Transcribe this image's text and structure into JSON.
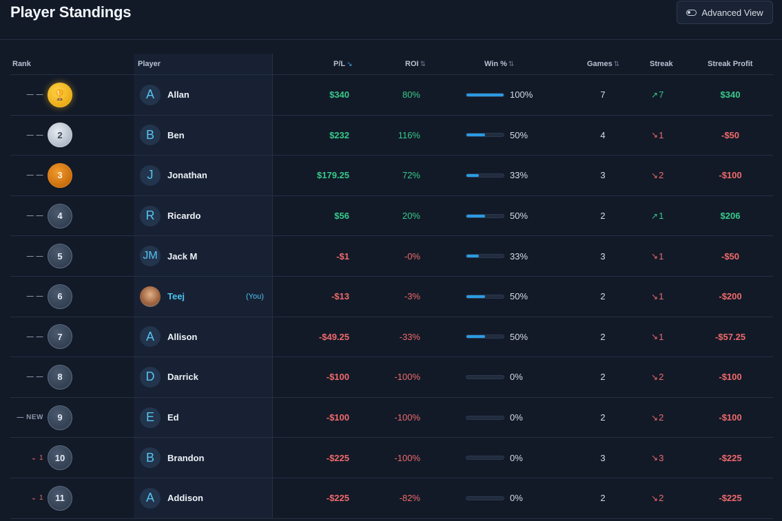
{
  "page": {
    "title": "Player Standings",
    "advanced_view_label": "Advanced View"
  },
  "columns": {
    "rank": "Rank",
    "player": "Player",
    "pl": "P/L",
    "roi": "ROI",
    "win": "Win %",
    "games": "Games",
    "streak": "Streak",
    "streak_profit": "Streak Profit"
  },
  "rows": [
    {
      "move": "— —",
      "rank": "",
      "badge": "gold",
      "initial": "A",
      "name": "Allan",
      "you": "",
      "pl": "$340",
      "pl_dir": "pos",
      "roi": "80%",
      "roi_dir": "pos",
      "win_pct": "100%",
      "win_fraction": 1.0,
      "games": "7",
      "streak_arrow": "↗",
      "streak": "7",
      "streak_dir": "pos",
      "streak_profit": "$340",
      "sp_dir": "pos"
    },
    {
      "move": "— —",
      "rank": "2",
      "badge": "silver",
      "initial": "B",
      "name": "Ben",
      "you": "",
      "pl": "$232",
      "pl_dir": "pos",
      "roi": "116%",
      "roi_dir": "pos",
      "win_pct": "50%",
      "win_fraction": 0.5,
      "games": "4",
      "streak_arrow": "↘",
      "streak": "1",
      "streak_dir": "neg",
      "streak_profit": "-$50",
      "sp_dir": "neg"
    },
    {
      "move": "— —",
      "rank": "3",
      "badge": "bronze",
      "initial": "J",
      "name": "Jonathan",
      "you": "",
      "pl": "$179.25",
      "pl_dir": "pos",
      "roi": "72%",
      "roi_dir": "pos",
      "win_pct": "33%",
      "win_fraction": 0.33,
      "games": "3",
      "streak_arrow": "↘",
      "streak": "2",
      "streak_dir": "neg",
      "streak_profit": "-$100",
      "sp_dir": "neg"
    },
    {
      "move": "— —",
      "rank": "4",
      "badge": "plain",
      "initial": "R",
      "name": "Ricardo",
      "you": "",
      "pl": "$56",
      "pl_dir": "pos",
      "roi": "20%",
      "roi_dir": "pos",
      "win_pct": "50%",
      "win_fraction": 0.5,
      "games": "2",
      "streak_arrow": "↗",
      "streak": "1",
      "streak_dir": "pos",
      "streak_profit": "$206",
      "sp_dir": "pos"
    },
    {
      "move": "— —",
      "rank": "5",
      "badge": "plain",
      "initial": "JM",
      "name": "Jack M",
      "you": "",
      "pl": "-$1",
      "pl_dir": "neg",
      "roi": "-0%",
      "roi_dir": "neg",
      "win_pct": "33%",
      "win_fraction": 0.33,
      "games": "3",
      "streak_arrow": "↘",
      "streak": "1",
      "streak_dir": "neg",
      "streak_profit": "-$50",
      "sp_dir": "neg"
    },
    {
      "move": "— —",
      "rank": "6",
      "badge": "plain",
      "initial": "",
      "name": "Teej",
      "you": "(You)",
      "pl": "-$13",
      "pl_dir": "neg",
      "roi": "-3%",
      "roi_dir": "neg",
      "win_pct": "50%",
      "win_fraction": 0.5,
      "games": "2",
      "streak_arrow": "↘",
      "streak": "1",
      "streak_dir": "neg",
      "streak_profit": "-$200",
      "sp_dir": "neg"
    },
    {
      "move": "— —",
      "rank": "7",
      "badge": "plain",
      "initial": "A",
      "name": "Allison",
      "you": "",
      "pl": "-$49.25",
      "pl_dir": "neg",
      "roi": "-33%",
      "roi_dir": "neg",
      "win_pct": "50%",
      "win_fraction": 0.5,
      "games": "2",
      "streak_arrow": "↘",
      "streak": "1",
      "streak_dir": "neg",
      "streak_profit": "-$57.25",
      "sp_dir": "neg"
    },
    {
      "move": "— —",
      "rank": "8",
      "badge": "plain",
      "initial": "D",
      "name": "Darrick",
      "you": "",
      "pl": "-$100",
      "pl_dir": "neg",
      "roi": "-100%",
      "roi_dir": "neg",
      "win_pct": "0%",
      "win_fraction": 0,
      "games": "2",
      "streak_arrow": "↘",
      "streak": "2",
      "streak_dir": "neg",
      "streak_profit": "-$100",
      "sp_dir": "neg"
    },
    {
      "move": "— NEW",
      "rank": "9",
      "badge": "plain",
      "initial": "E",
      "name": "Ed",
      "you": "",
      "pl": "-$100",
      "pl_dir": "neg",
      "roi": "-100%",
      "roi_dir": "neg",
      "win_pct": "0%",
      "win_fraction": 0,
      "games": "2",
      "streak_arrow": "↘",
      "streak": "2",
      "streak_dir": "neg",
      "streak_profit": "-$100",
      "sp_dir": "neg"
    },
    {
      "move": "⌄ 1",
      "rank": "10",
      "badge": "plain",
      "initial": "B",
      "name": "Brandon",
      "you": "",
      "pl": "-$225",
      "pl_dir": "neg",
      "roi": "-100%",
      "roi_dir": "neg",
      "win_pct": "0%",
      "win_fraction": 0,
      "games": "3",
      "streak_arrow": "↘",
      "streak": "3",
      "streak_dir": "neg",
      "streak_profit": "-$225",
      "sp_dir": "neg"
    },
    {
      "move": "⌄ 1",
      "rank": "11",
      "badge": "plain",
      "initial": "A",
      "name": "Addison",
      "you": "",
      "pl": "-$225",
      "pl_dir": "neg",
      "roi": "-82%",
      "roi_dir": "neg",
      "win_pct": "0%",
      "win_fraction": 0,
      "games": "2",
      "streak_arrow": "↘",
      "streak": "2",
      "streak_dir": "neg",
      "streak_profit": "-$225",
      "sp_dir": "neg"
    }
  ]
}
